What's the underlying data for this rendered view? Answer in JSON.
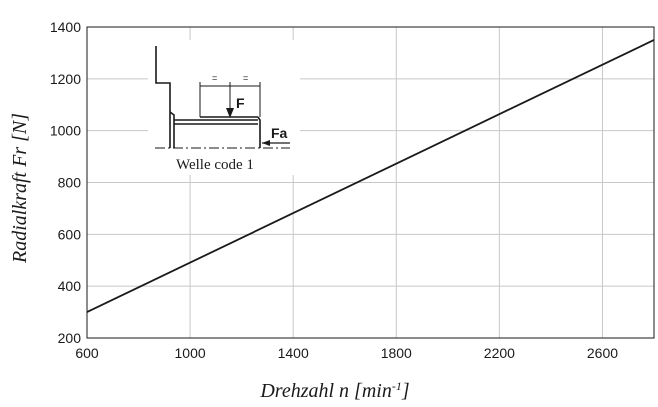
{
  "chart_data": {
    "type": "line",
    "xlabel_main": "Drehzahl n [min",
    "xlabel_sup": "-1",
    "xlabel_end": "]",
    "ylabel": "Radialkraft Fr [N]",
    "xlim": [
      600,
      2800
    ],
    "ylim": [
      200,
      1400
    ],
    "xticks": [
      600,
      1000,
      1400,
      1800,
      2200,
      2600
    ],
    "yticks": [
      200,
      400,
      600,
      800,
      1000,
      1200,
      1400
    ],
    "x_grid": [
      600,
      1000,
      1400,
      1800,
      2200,
      2600,
      2800
    ],
    "grid": true,
    "series": [
      {
        "x": [
          600,
          2800
        ],
        "y": [
          300,
          1350
        ]
      }
    ],
    "inset": {
      "caption": "Welle code 1",
      "force_label": "F",
      "axial_force_label": "Fa",
      "equal_mark": "="
    },
    "colors": {
      "line": "#1a1a1a",
      "grid": "#c8c8c8",
      "frame": "#1a1a1a"
    }
  }
}
